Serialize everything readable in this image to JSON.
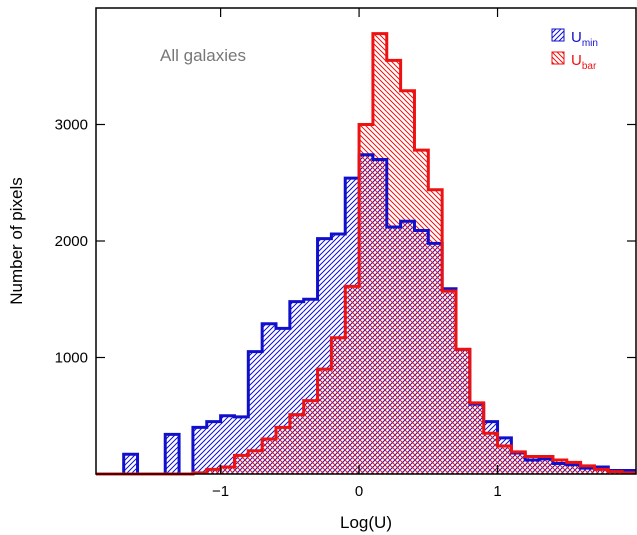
{
  "chart_data": {
    "type": "histogram",
    "annotation": "All galaxies",
    "xlabel": "Log(U)",
    "ylabel": "Number of pixels",
    "xlim": [
      -1.9,
      2.0
    ],
    "ylim": [
      0,
      4000
    ],
    "xticks": [
      -1,
      0,
      1
    ],
    "xtick_labels": [
      "−1",
      "0",
      "1"
    ],
    "yticks": [
      1000,
      2000,
      3000
    ],
    "ytick_labels": [
      "1000",
      "2000",
      "3000"
    ],
    "grid": false,
    "legend_position": "top-right",
    "bin_width": 0.1,
    "bin_edges_start": -1.9,
    "series": [
      {
        "key": "umin",
        "legend_main": "U",
        "legend_sub": "min",
        "color": "#1010cc",
        "hatch": "forward-diagonal",
        "values": [
          0,
          0,
          170,
          0,
          0,
          340,
          0,
          400,
          450,
          500,
          490,
          1050,
          1290,
          1250,
          1480,
          1500,
          2020,
          2060,
          2540,
          2740,
          2700,
          2120,
          2170,
          2090,
          1980,
          1590,
          1070,
          600,
          450,
          310,
          180,
          120,
          130,
          90,
          80,
          50,
          60,
          30,
          30
        ]
      },
      {
        "key": "ubar",
        "legend_main": "U",
        "legend_sub": "bar",
        "color": "#ee1111",
        "hatch": "back-diagonal",
        "values": [
          0,
          0,
          0,
          0,
          0,
          0,
          0,
          10,
          40,
          60,
          160,
          200,
          300,
          400,
          510,
          630,
          900,
          1170,
          1610,
          3000,
          3780,
          3550,
          3290,
          2780,
          2440,
          1570,
          1070,
          610,
          350,
          240,
          190,
          150,
          150,
          120,
          100,
          70,
          40,
          20,
          10
        ]
      }
    ]
  }
}
